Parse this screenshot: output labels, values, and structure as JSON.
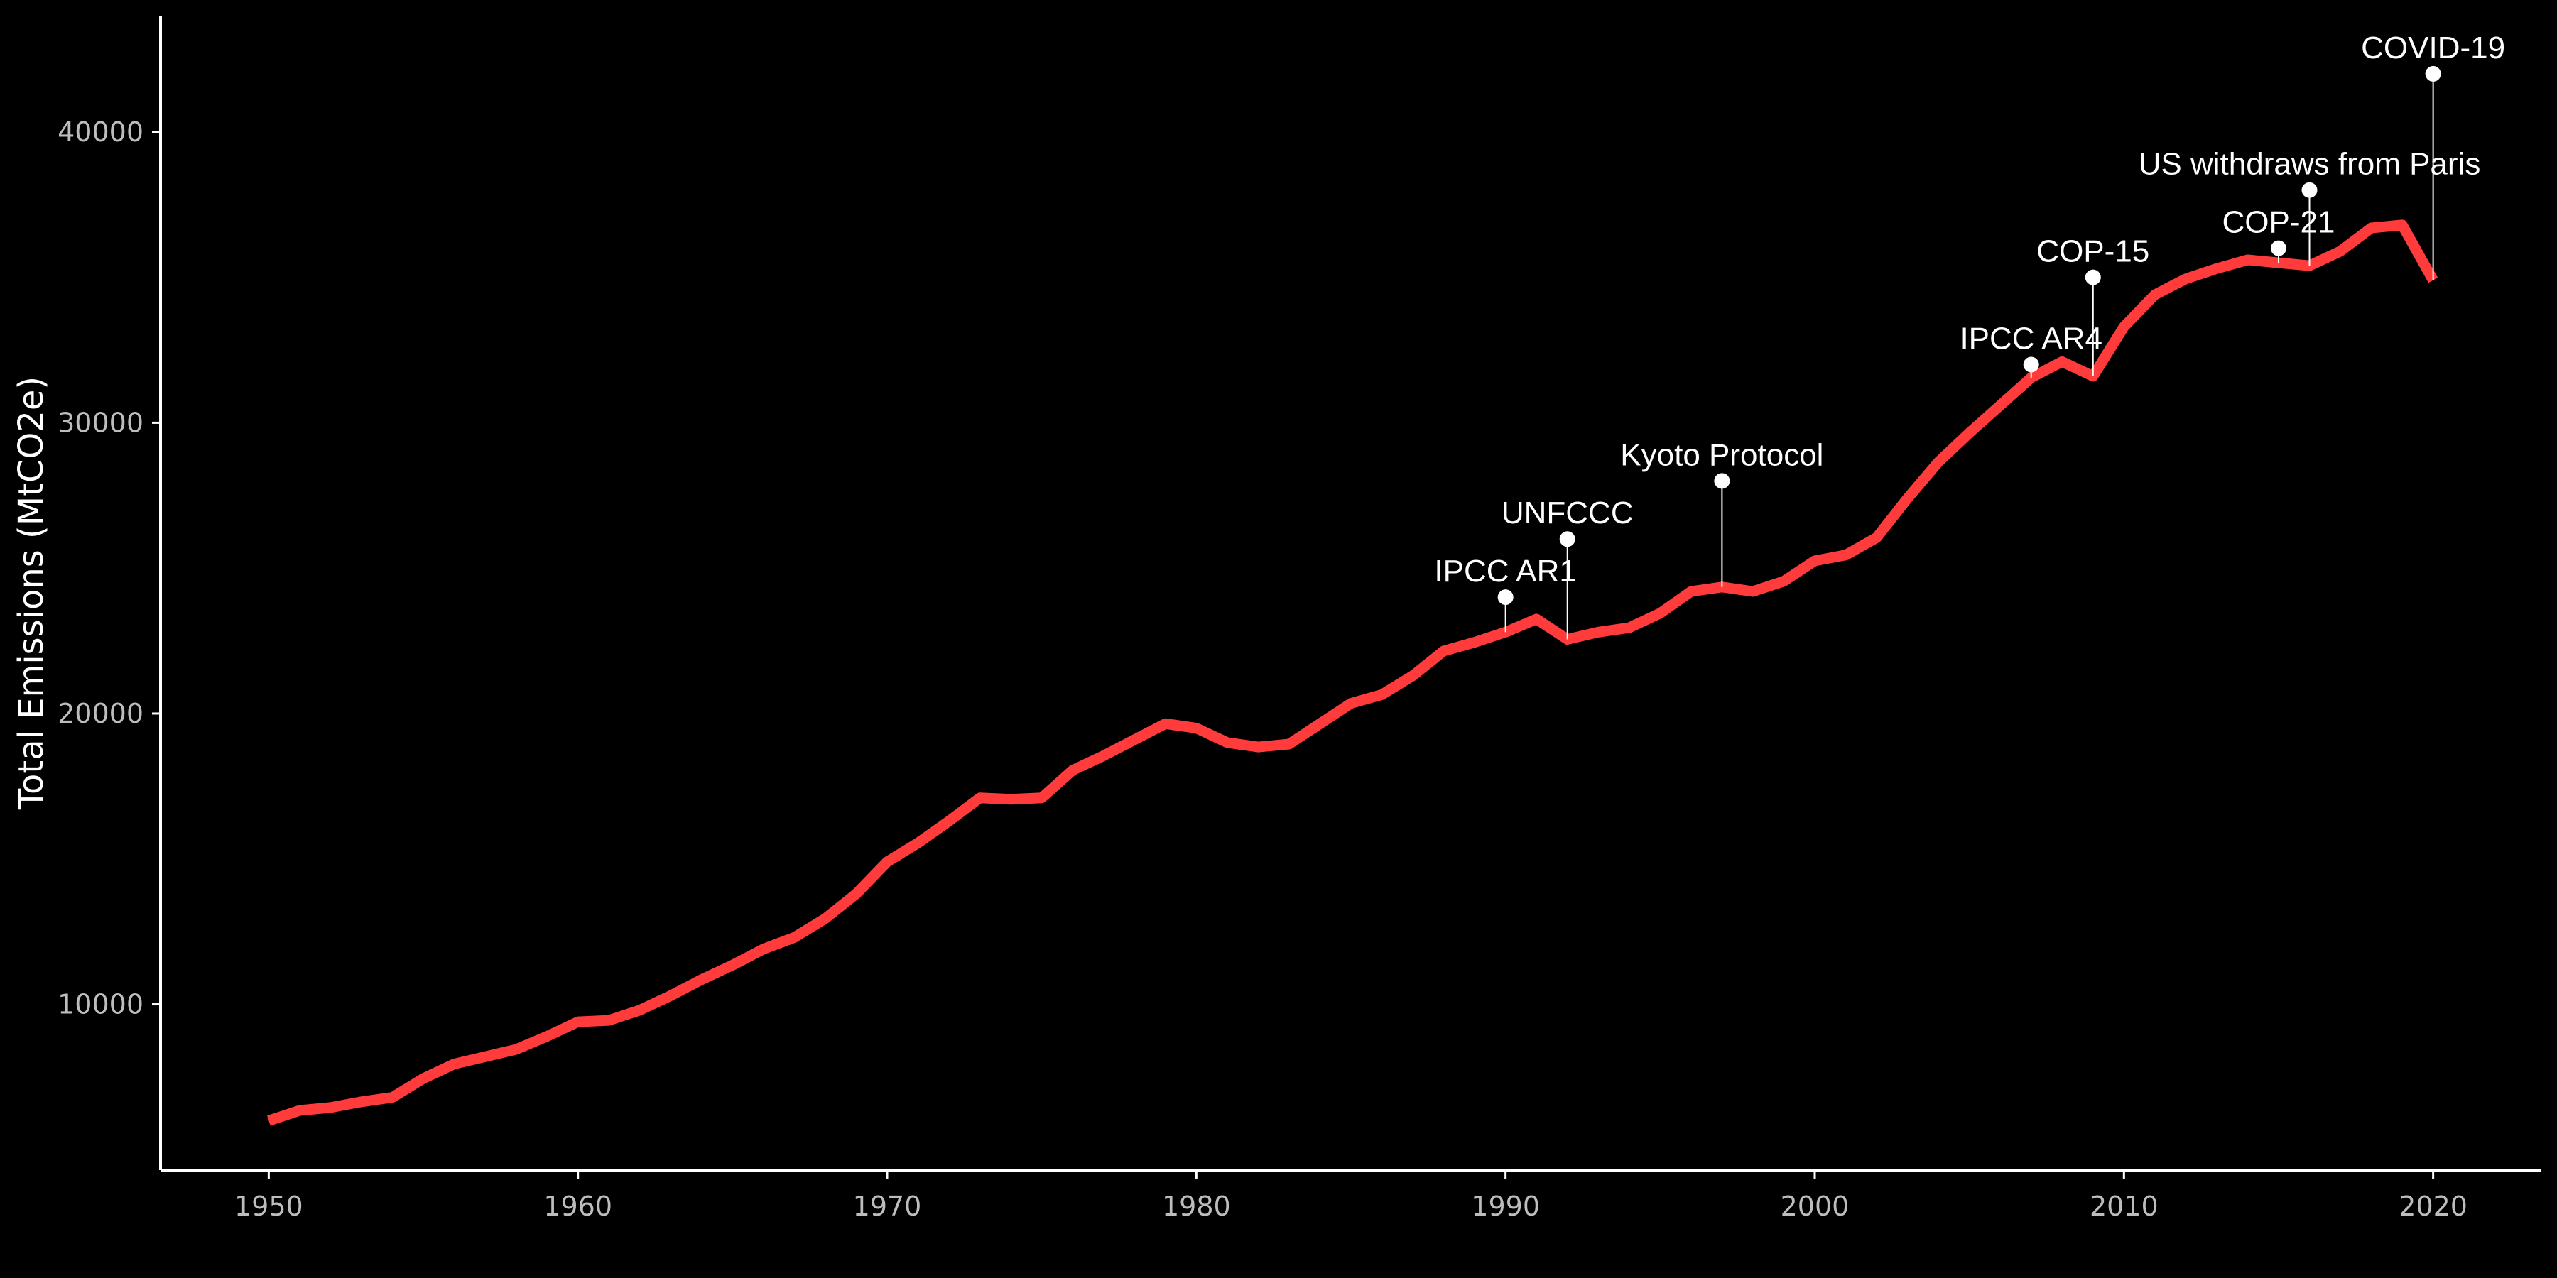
{
  "chart_data": {
    "type": "line",
    "title": "",
    "xlabel": "",
    "ylabel": "Total Emissions (MtCO2e)",
    "xlim": [
      1946.5,
      2023.5
    ],
    "ylim": [
      4300,
      44000
    ],
    "x_ticks": [
      1950,
      1960,
      1970,
      1980,
      1990,
      2000,
      2010,
      2020
    ],
    "y_ticks": [
      10000,
      20000,
      30000,
      40000
    ],
    "grid": false,
    "line_color": "#ff3b3b",
    "annotation_color": "#ffffff",
    "series": [
      {
        "name": "Total Emissions",
        "x": [
          1950,
          1951,
          1952,
          1953,
          1954,
          1955,
          1956,
          1957,
          1958,
          1959,
          1960,
          1961,
          1962,
          1963,
          1964,
          1965,
          1966,
          1967,
          1968,
          1969,
          1970,
          1971,
          1972,
          1973,
          1974,
          1975,
          1976,
          1977,
          1978,
          1979,
          1980,
          1981,
          1982,
          1983,
          1984,
          1985,
          1986,
          1987,
          1988,
          1989,
          1990,
          1991,
          1992,
          1993,
          1994,
          1995,
          1996,
          1997,
          1998,
          1999,
          2000,
          2001,
          2002,
          2003,
          2004,
          2005,
          2006,
          2007,
          2008,
          2009,
          2010,
          2011,
          2012,
          2013,
          2014,
          2015,
          2016,
          2017,
          2018,
          2019,
          2020
        ],
        "values": [
          6000,
          6350,
          6450,
          6650,
          6800,
          7450,
          7950,
          8200,
          8450,
          8900,
          9400,
          9450,
          9800,
          10300,
          10850,
          11350,
          11900,
          12300,
          12950,
          13800,
          14900,
          15550,
          16300,
          17100,
          17050,
          17100,
          18050,
          18550,
          19100,
          19650,
          19500,
          19000,
          18850,
          18950,
          19650,
          20350,
          20650,
          21300,
          22150,
          22450,
          22800,
          23250,
          22550,
          22800,
          22950,
          23450,
          24200,
          24350,
          24200,
          24550,
          25250,
          25450,
          26050,
          27400,
          28650,
          29650,
          30600,
          31550,
          32100,
          31600,
          33300,
          34400,
          34950,
          35300,
          35600,
          35500,
          35400,
          35900,
          36700,
          36800,
          34900
        ]
      }
    ],
    "annotations": [
      {
        "label": "IPCC AR1",
        "year": 1990,
        "marker_y": 24000
      },
      {
        "label": "UNFCCC",
        "year": 1992,
        "marker_y": 26000
      },
      {
        "label": "Kyoto Protocol",
        "year": 1997,
        "marker_y": 28000
      },
      {
        "label": "IPCC AR4",
        "year": 2007,
        "marker_y": 32000
      },
      {
        "label": "COP-15",
        "year": 2009,
        "marker_y": 35000
      },
      {
        "label": "COP-21",
        "year": 2015,
        "marker_y": 36000
      },
      {
        "label": "US withdraws from Paris",
        "year": 2016,
        "marker_y": 38000
      },
      {
        "label": "COVID-19",
        "year": 2020,
        "marker_y": 42000
      }
    ]
  }
}
